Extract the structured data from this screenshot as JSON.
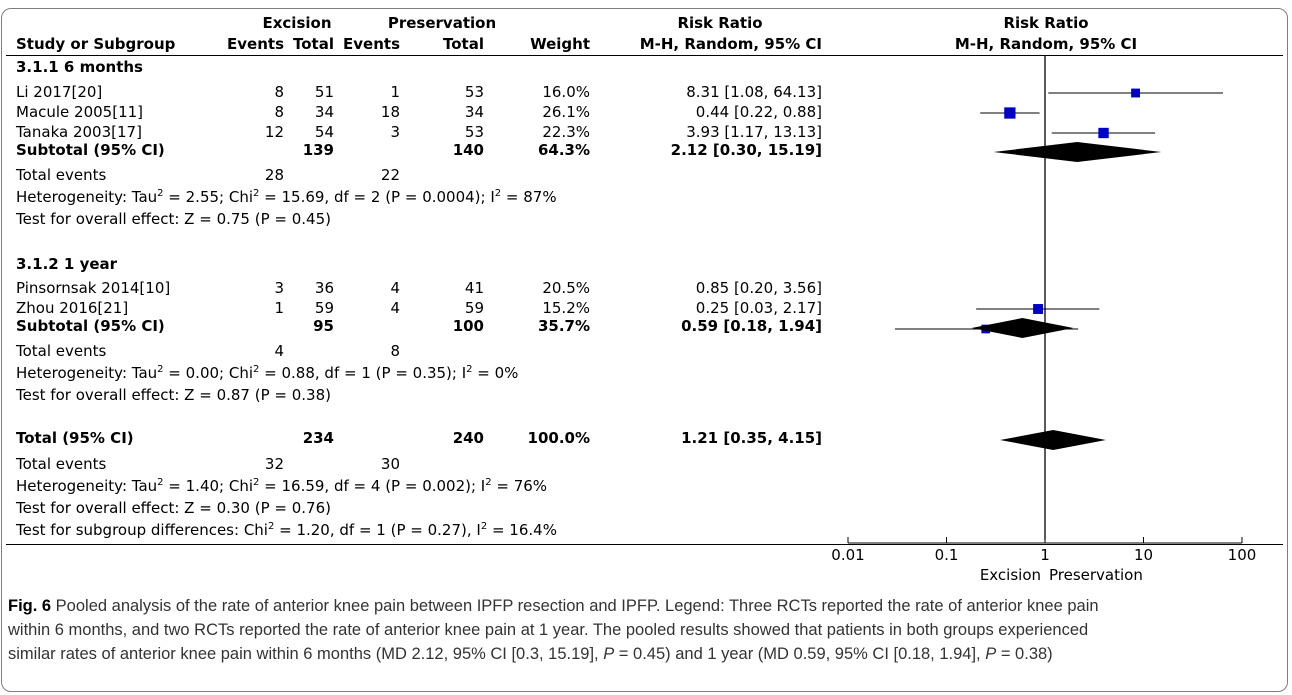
{
  "header": {
    "group1": "Excision",
    "group2": "Preservation",
    "rr_title": "Risk Ratio",
    "plot_title": "Risk Ratio",
    "col_study": "Study or Subgroup",
    "col_events1": "Events",
    "col_total1": "Total",
    "col_events2": "Events",
    "col_total2": "Total",
    "col_weight": "Weight",
    "col_method": "M-H, Random, 95% CI",
    "plot_method": "M-H, Random, 95% CI"
  },
  "subgroup1": {
    "title": "3.1.1 6 months",
    "studies": [
      {
        "name": "Li 2017[20]",
        "e1": "8",
        "t1": "51",
        "e2": "1",
        "t2": "53",
        "weight": "16.0%",
        "ci": "8.31 [1.08, 64.13]"
      },
      {
        "name": "Macule 2005[11]",
        "e1": "8",
        "t1": "34",
        "e2": "18",
        "t2": "34",
        "weight": "26.1%",
        "ci": "0.44 [0.22, 0.88]"
      },
      {
        "name": "Tanaka 2003[17]",
        "e1": "12",
        "t1": "54",
        "e2": "3",
        "t2": "53",
        "weight": "22.3%",
        "ci": "3.93 [1.17, 13.13]"
      }
    ],
    "subtotal": {
      "label": "Subtotal (95% CI)",
      "t1": "139",
      "t2": "140",
      "weight": "64.3%",
      "ci": "2.12 [0.30, 15.19]"
    },
    "events": {
      "label": "Total events",
      "e1": "28",
      "e2": "22"
    },
    "heterogeneity": {
      "pre": "Heterogeneity: Tau",
      "mid1": " = 2.55; Chi",
      "mid2": " = 15.69, df = 2 (P = 0.0004); I",
      "post": " = 87%"
    },
    "overall": "Test for overall effect: Z = 0.75 (P = 0.45)"
  },
  "subgroup2": {
    "title": "3.1.2 1 year",
    "studies": [
      {
        "name": "Pinsornsak 2014[10]",
        "e1": "3",
        "t1": "36",
        "e2": "4",
        "t2": "41",
        "weight": "20.5%",
        "ci": "0.85 [0.20, 3.56]"
      },
      {
        "name": "Zhou 2016[21]",
        "e1": "1",
        "t1": "59",
        "e2": "4",
        "t2": "59",
        "weight": "15.2%",
        "ci": "0.25 [0.03, 2.17]"
      }
    ],
    "subtotal": {
      "label": "Subtotal (95% CI)",
      "t1": "95",
      "t2": "100",
      "weight": "35.7%",
      "ci": "0.59 [0.18, 1.94]"
    },
    "events": {
      "label": "Total events",
      "e1": "4",
      "e2": "8"
    },
    "heterogeneity": {
      "pre": "Heterogeneity: Tau",
      "mid1": " = 0.00; Chi",
      "mid2": " = 0.88, df = 1 (P = 0.35); I",
      "post": " = 0%"
    },
    "overall": "Test for overall effect: Z = 0.87 (P = 0.38)"
  },
  "total": {
    "label": "Total (95% CI)",
    "t1": "234",
    "t2": "240",
    "weight": "100.0%",
    "ci": "1.21 [0.35, 4.15]",
    "events": {
      "label": "Total events",
      "e1": "32",
      "e2": "30"
    },
    "heterogeneity": {
      "pre": "Heterogeneity: Tau",
      "mid1": " = 1.40; Chi",
      "mid2": " = 16.59, df = 4 (P = 0.002); I",
      "post": " = 76%"
    },
    "overall": "Test for overall effect: Z = 0.30 (P = 0.76)",
    "subgroup_diff": {
      "pre": "Test for subgroup differences: Chi",
      "post": " = 1.20, df = 1 (P = 0.27), I",
      "post2": " = 16.4%"
    }
  },
  "sup2": "2",
  "caption": {
    "label": "Fig. 6",
    "line1": " Pooled analysis of the rate of anterior knee pain between IPFP resection and IPFP. Legend: Three RCTs reported the rate of anterior knee pain",
    "line2": "within 6 months, and two RCTs reported the rate of anterior knee pain at 1 year. The pooled results showed that patients in both groups experienced",
    "line3a": "similar rates of anterior knee pain within 6 months (MD 2.12, 95% CI [0.3, 15.19], ",
    "p": "P",
    "line3b": " = 0.45) and 1 year (MD 0.59, 95% CI [0.18, 1.94], ",
    "line3c": " = 0.38)"
  },
  "chart_data": {
    "type": "forest",
    "title": "Risk Ratio",
    "subtitle": "M-H, Random, 95% CI",
    "xscale": "log",
    "xlim": [
      0.01,
      100
    ],
    "null_line": 1,
    "ticks": [
      "0.01",
      "0.1",
      "1",
      "10",
      "100"
    ],
    "tick_values": [
      0.01,
      0.1,
      1,
      10,
      100
    ],
    "favours_left": "Excision",
    "favours_right": "Preservation",
    "marker_color": "#0000c8",
    "studies": [
      {
        "name": "Li 2017[20]",
        "est": 8.31,
        "lo": 1.08,
        "hi": 64.13,
        "weight": 16.0
      },
      {
        "name": "Macule 2005[11]",
        "est": 0.44,
        "lo": 0.22,
        "hi": 0.88,
        "weight": 26.1
      },
      {
        "name": "Tanaka 2003[17]",
        "est": 3.93,
        "lo": 1.17,
        "hi": 13.13,
        "weight": 22.3
      },
      {
        "name": "Pinsornsak 2014[10]",
        "est": 0.85,
        "lo": 0.2,
        "hi": 3.56,
        "weight": 20.5
      },
      {
        "name": "Zhou 2016[21]",
        "est": 0.25,
        "lo": 0.03,
        "hi": 2.17,
        "weight": 15.2
      }
    ],
    "pooled": [
      {
        "name": "Subtotal 6 months",
        "est": 2.12,
        "lo": 0.3,
        "hi": 15.19
      },
      {
        "name": "Subtotal 1 year",
        "est": 0.59,
        "lo": 0.18,
        "hi": 1.94
      },
      {
        "name": "Total",
        "est": 1.21,
        "lo": 0.35,
        "hi": 4.15
      }
    ]
  }
}
